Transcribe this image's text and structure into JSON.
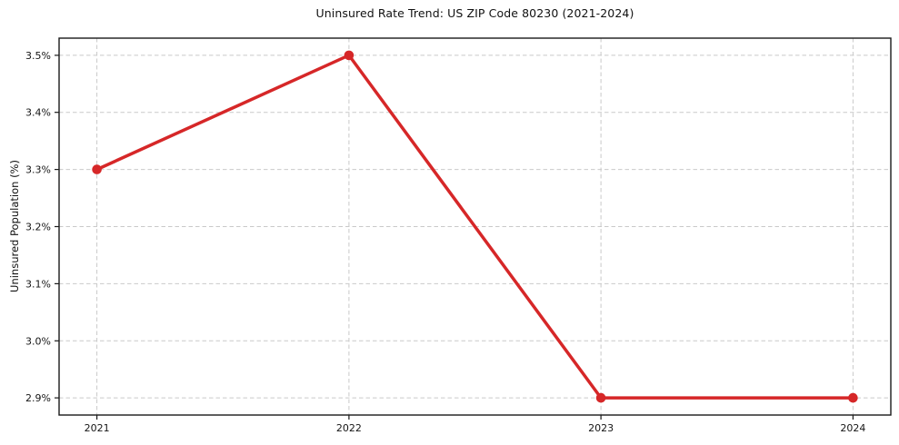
{
  "chart_data": {
    "type": "line",
    "title": "Uninsured Rate Trend: US ZIP Code 80230 (2021-2024)",
    "xlabel": "",
    "ylabel": "Uninsured Population (%)",
    "x": [
      2021,
      2022,
      2023,
      2024
    ],
    "x_tick_labels": [
      "2021",
      "2022",
      "2023",
      "2024"
    ],
    "series": [
      {
        "values": [
          3.3,
          3.5,
          2.9,
          2.9
        ],
        "color": "#d62728"
      }
    ],
    "y_ticks": [
      2.9,
      3.0,
      3.1,
      3.2,
      3.3,
      3.4,
      3.5
    ],
    "y_tick_labels": [
      "2.9%",
      "3.0%",
      "3.1%",
      "3.2%",
      "3.3%",
      "3.4%",
      "3.5%"
    ],
    "xlim": [
      2020.85,
      2024.15
    ],
    "ylim": [
      2.87,
      3.53
    ],
    "grid": true,
    "grid_style": "dashed",
    "legend": false,
    "colors": {
      "line": "#d62728",
      "marker": "#d62728",
      "grid": "#c9c9c9",
      "axis": "#1a1a1a",
      "tick_label": "#151515",
      "background": "#ffffff"
    }
  }
}
